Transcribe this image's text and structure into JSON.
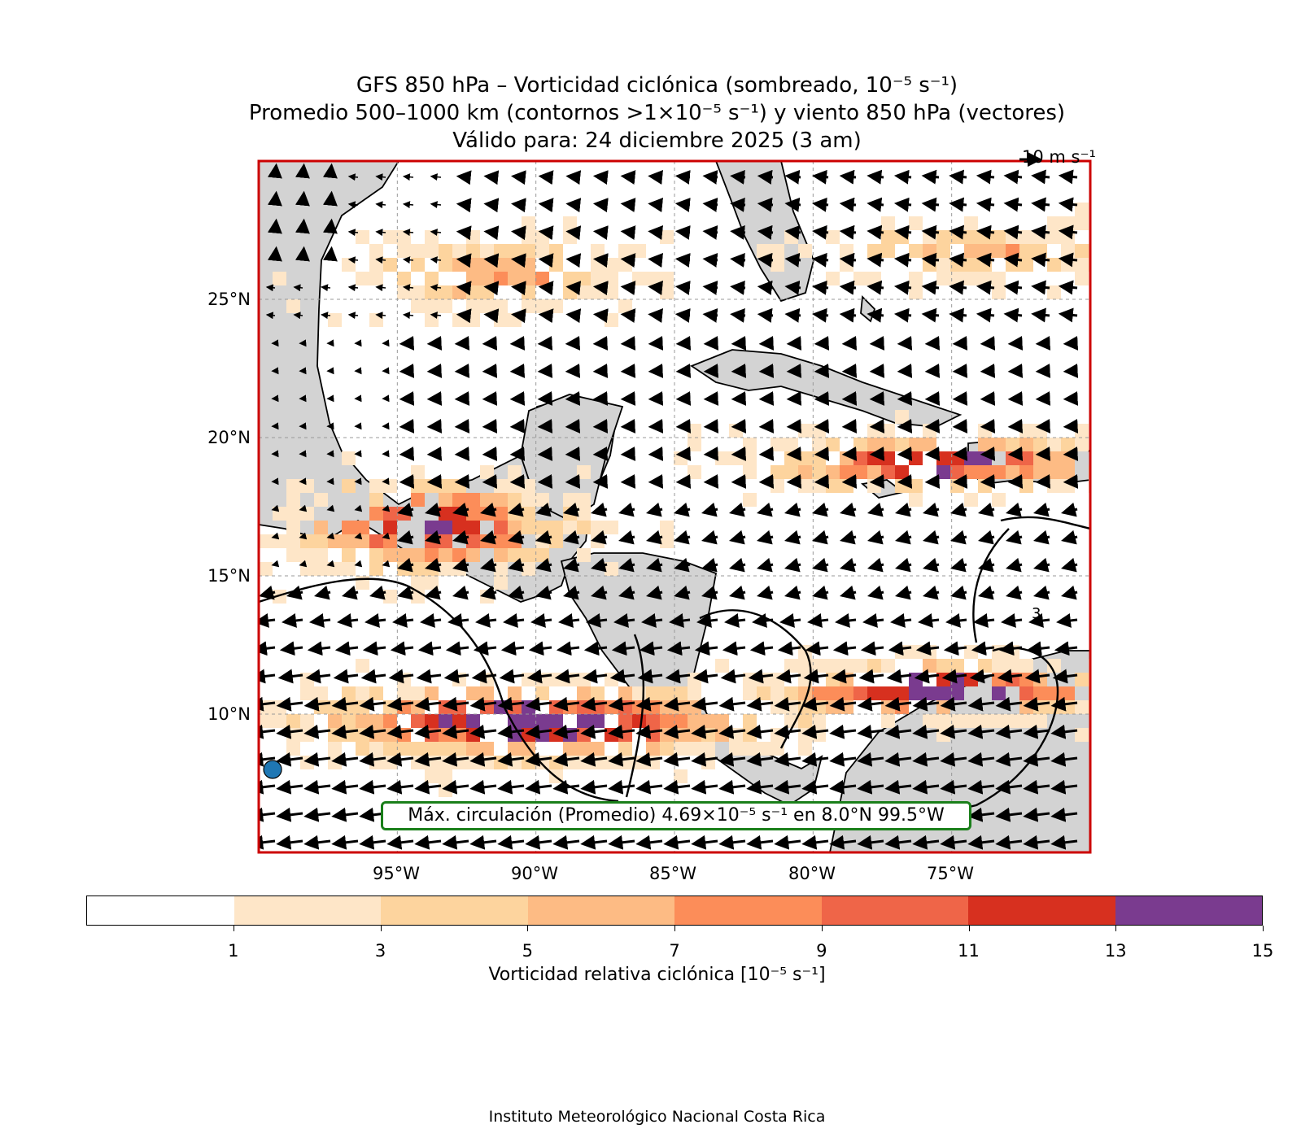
{
  "title_lines": [
    "GFS 850 hPa – Vorticidad ciclónica (sombreado, 10⁻⁵ s⁻¹)",
    "Promedio 500–1000 km (contornos >1×10⁻⁵ s⁻¹) y viento 850 hPa (vectores)",
    "Válido para: 24 diciembre 2025 (3 am)"
  ],
  "map": {
    "lon_range": [
      -100,
      -70
    ],
    "lat_range": [
      5,
      30
    ],
    "lat_ticks": [
      "25°N",
      "20°N",
      "15°N",
      "10°N"
    ],
    "lon_ticks": [
      "95°W",
      "90°W",
      "85°W",
      "80°W",
      "75°W"
    ],
    "frame_color": "#cc0000",
    "land_color": "#d3d3d3",
    "reference_vector": "10 m s⁻¹",
    "marker": {
      "lat": 8.0,
      "lon": -99.5,
      "color": "#1f77b4",
      "icon": "circle-marker"
    },
    "contour_label": "3"
  },
  "annotation": "Máx. circulación (Promedio) 4.69×10⁻⁵ s⁻¹ en 8.0°N 99.5°W",
  "colorbar": {
    "label": "Vorticidad relativa ciclónica [10⁻⁵ s⁻¹]",
    "ticks": [
      "1",
      "3",
      "5",
      "7",
      "9",
      "11",
      "13",
      "15"
    ],
    "colors": [
      "#ffffff",
      "#fee6c8",
      "#fdd49e",
      "#fdbb84",
      "#fc8d59",
      "#ef6548",
      "#d7301f",
      "#7a3b8f"
    ]
  },
  "credit": "Instituto Meteorológico Nacional Costa Rica"
}
